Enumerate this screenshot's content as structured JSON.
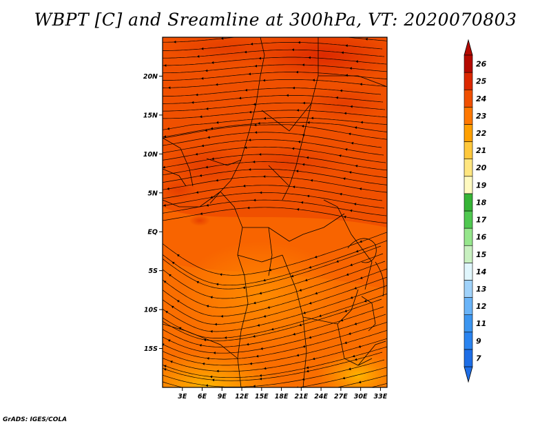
{
  "title": "WBPT [C] and Sreamline at 300hPa, VT: 2020070803",
  "credit": "GrADS: IGES/COLA",
  "map": {
    "lat_range": [
      -20,
      25
    ],
    "lon_range": [
      0,
      34
    ],
    "lat_ticks": [
      {
        "value": 20,
        "label": "20N"
      },
      {
        "value": 15,
        "label": "15N"
      },
      {
        "value": 10,
        "label": "10N"
      },
      {
        "value": 5,
        "label": "5N"
      },
      {
        "value": 0,
        "label": "EQ"
      },
      {
        "value": -5,
        "label": "5S"
      },
      {
        "value": -10,
        "label": "10S"
      },
      {
        "value": -15,
        "label": "15S"
      }
    ],
    "lon_ticks": [
      {
        "value": 3,
        "label": "3E"
      },
      {
        "value": 6,
        "label": "6E"
      },
      {
        "value": 9,
        "label": "9E"
      },
      {
        "value": 12,
        "label": "12E"
      },
      {
        "value": 15,
        "label": "15E"
      },
      {
        "value": 18,
        "label": "18E"
      },
      {
        "value": 21,
        "label": "21E"
      },
      {
        "value": 24,
        "label": "24E"
      },
      {
        "value": 27,
        "label": "27E"
      },
      {
        "value": 30,
        "label": "30E"
      },
      {
        "value": 33,
        "label": "33E"
      }
    ]
  },
  "colorbar": {
    "labels": [
      "7",
      "9",
      "11",
      "12",
      "13",
      "14",
      "15",
      "16",
      "17",
      "18",
      "19",
      "20",
      "21",
      "22",
      "23",
      "24",
      "25",
      "26"
    ],
    "colors": [
      "#1e6ee6",
      "#2a84f0",
      "#3c96f0",
      "#6ab4f8",
      "#a0d2fa",
      "#e0f6fc",
      "#c8f0c0",
      "#96e68c",
      "#50c850",
      "#36b436",
      "#fffac0",
      "#ffe680",
      "#ffc83c",
      "#ffa000",
      "#ff7800",
      "#f05000",
      "#dc2800",
      "#b40a00"
    ],
    "arrow_low_color": "#1e6ee6",
    "arrow_high_color": "#b40a00"
  }
}
